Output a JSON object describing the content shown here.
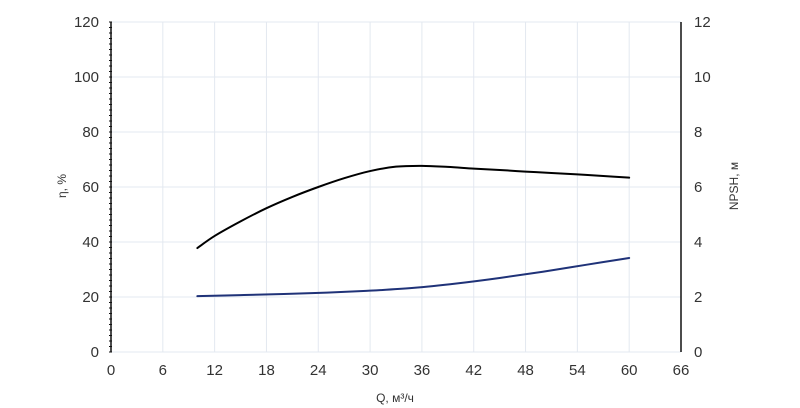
{
  "chart_data": {
    "type": "line",
    "title": "",
    "xlabel": "Q, м³/ч",
    "ylabel_left": "η, %",
    "ylabel_right": "NPSH, м",
    "xlim": [
      0,
      66
    ],
    "ylim_left": [
      0,
      120
    ],
    "ylim_right": [
      0,
      12
    ],
    "x_ticks": [
      0,
      6,
      12,
      18,
      24,
      30,
      36,
      42,
      48,
      54,
      60,
      66
    ],
    "y_ticks_left": [
      0,
      20,
      40,
      60,
      80,
      100,
      120
    ],
    "y_ticks_right": [
      0,
      2,
      4,
      6,
      8,
      10,
      12
    ],
    "grid": true,
    "series": [
      {
        "axis": "left",
        "color": "#000000",
        "x": [
          10,
          12,
          15,
          18,
          21,
          24,
          27,
          30,
          33,
          36,
          39,
          42,
          45,
          48,
          51,
          54,
          57,
          60
        ],
        "y": [
          37.8,
          42.2,
          47.5,
          52.3,
          56.4,
          60.0,
          63.2,
          65.8,
          67.4,
          67.7,
          67.3,
          66.7,
          66.2,
          65.6,
          65.1,
          64.6,
          64.0,
          63.4
        ]
      },
      {
        "axis": "right",
        "color": "#1f3278",
        "x": [
          10,
          15,
          20,
          25,
          30,
          35,
          40,
          45,
          50,
          55,
          60
        ],
        "y": [
          2.03,
          2.07,
          2.11,
          2.16,
          2.23,
          2.33,
          2.49,
          2.69,
          2.92,
          3.17,
          3.42
        ]
      }
    ]
  }
}
